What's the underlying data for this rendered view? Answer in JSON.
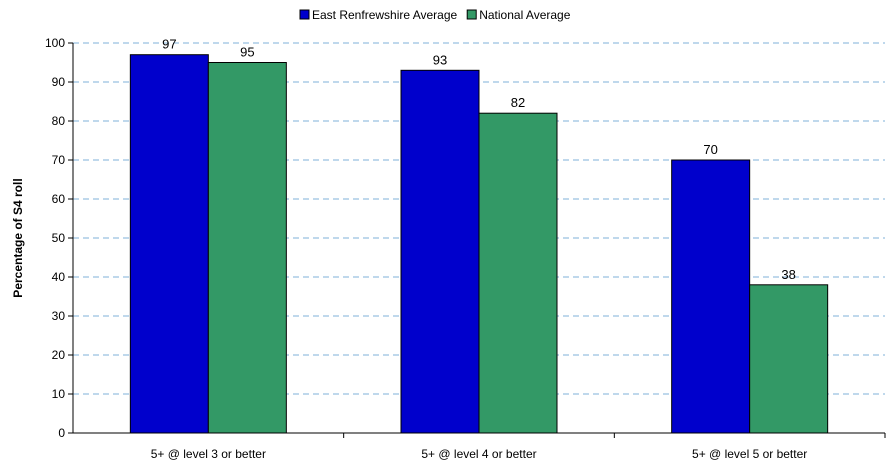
{
  "chart_data": {
    "type": "bar",
    "title": "",
    "xlabel": "",
    "ylabel": "Percentage of S4 roll",
    "categories": [
      "5+ @ level 3 or better",
      "5+ @ level 4 or better",
      "5+ @ level 5 or better"
    ],
    "series": [
      {
        "name": "East Renfrewshire Average",
        "values": [
          97,
          93,
          70
        ],
        "color": "#0000cc"
      },
      {
        "name": "National Average",
        "values": [
          95,
          82,
          38
        ],
        "color": "#339966"
      }
    ],
    "ylim": [
      0,
      100
    ],
    "yticks": [
      0,
      10,
      20,
      30,
      40,
      50,
      60,
      70,
      80,
      90,
      100
    ],
    "grid": true,
    "legend_position": "top-center",
    "data_labels": true
  }
}
